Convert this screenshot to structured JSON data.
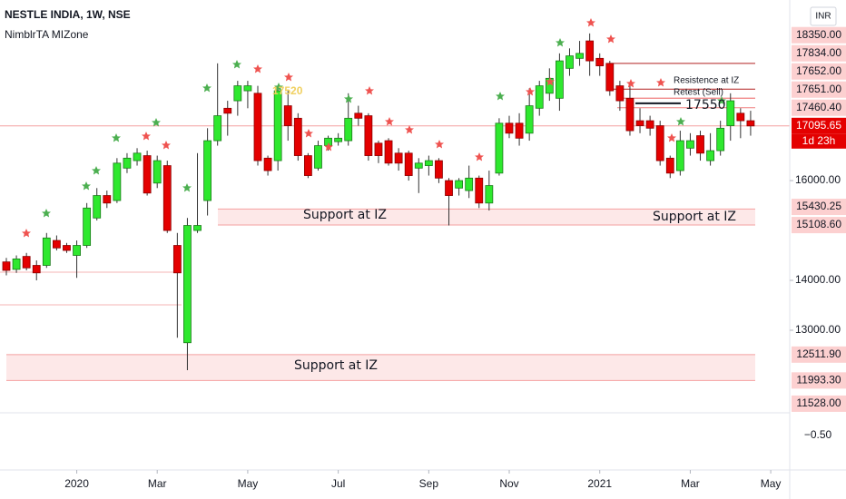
{
  "chart_data": {
    "type": "candlestick",
    "title": "NESTLE INDIA, 1W, NSE",
    "subtitle": "NimblrTA MIZone",
    "currency": "INR",
    "categories": [
      null,
      null,
      null,
      null,
      null,
      null,
      null,
      "2020",
      null,
      null,
      null,
      null,
      null,
      null,
      null,
      "Mar",
      null,
      null,
      null,
      null,
      null,
      null,
      null,
      null,
      "May",
      null,
      null,
      null,
      null,
      null,
      null,
      null,
      null,
      "Jul",
      null,
      null,
      null,
      null,
      null,
      null,
      null,
      null,
      "Sep",
      null,
      null,
      null,
      null,
      null,
      null,
      null,
      "Nov",
      null,
      null,
      null,
      null,
      null,
      null,
      null,
      null,
      "2021",
      null,
      null,
      null,
      null,
      null,
      null,
      null,
      null,
      "Mar",
      null,
      null,
      null,
      null,
      null,
      null,
      null,
      "May"
    ],
    "open": [
      14370,
      14220,
      14480,
      14300,
      14300,
      14800,
      14700,
      14500,
      14700,
      15250,
      15700,
      15600,
      16250,
      16400,
      16500,
      15950,
      16300,
      14700,
      12750,
      15000,
      15600,
      16800,
      17450,
      17600,
      17800,
      17750,
      16450,
      16400,
      17500,
      17250,
      16500,
      16250,
      16700,
      16780,
      16800,
      17350,
      17300,
      16750,
      16800,
      16550,
      16550,
      16250,
      16300,
      16400,
      16000,
      15850,
      15800,
      16050,
      15550,
      16150,
      17150,
      17150,
      16950,
      17450,
      17750,
      17650,
      18250,
      18450,
      18800,
      18450,
      18350,
      17900,
      17650,
      17200,
      17200,
      17100,
      16450,
      16200,
      16650,
      16900,
      16400,
      16600,
      17100,
      17350,
      17200,
      null,
      null
    ],
    "high": [
      14450,
      14500,
      14550,
      14400,
      14950,
      14900,
      14750,
      14800,
      15550,
      15850,
      15800,
      16450,
      16550,
      16650,
      16600,
      16500,
      16400,
      14950,
      15250,
      16550,
      17050,
      18350,
      17600,
      18000,
      18000,
      17900,
      16500,
      17900,
      17800,
      17350,
      16550,
      16800,
      16900,
      16950,
      17750,
      17500,
      17350,
      16800,
      16850,
      16650,
      16600,
      16450,
      16500,
      16450,
      16050,
      16050,
      16300,
      16100,
      16200,
      17250,
      17300,
      17350,
      17850,
      18000,
      18250,
      18550,
      18650,
      18800,
      18950,
      18550,
      18400,
      18000,
      17900,
      17450,
      17300,
      17200,
      16500,
      17000,
      16950,
      17000,
      16950,
      17200,
      17750,
      17450,
      17400,
      null,
      null
    ],
    "low": [
      14100,
      14150,
      14200,
      14000,
      14250,
      14600,
      14550,
      14050,
      14650,
      15200,
      15450,
      15550,
      16150,
      16300,
      15700,
      15850,
      14950,
      12850,
      12200,
      14950,
      15300,
      16700,
      16900,
      17300,
      17450,
      16300,
      16100,
      16200,
      16800,
      16400,
      16050,
      16200,
      16600,
      16700,
      16700,
      17100,
      16400,
      16350,
      16300,
      16200,
      16000,
      15750,
      16100,
      15950,
      15100,
      15700,
      15650,
      15450,
      15400,
      16100,
      16850,
      16700,
      16800,
      17300,
      17600,
      17400,
      18100,
      18300,
      18100,
      18100,
      17700,
      17400,
      16900,
      16950,
      16900,
      16300,
      16050,
      16100,
      16500,
      16400,
      16300,
      16500,
      16800,
      16850,
      16900,
      null,
      null
    ],
    "close": [
      14200,
      14430,
      14250,
      14150,
      14850,
      14650,
      14600,
      14700,
      15450,
      15700,
      15550,
      16350,
      16450,
      16550,
      15750,
      16400,
      15000,
      14150,
      15100,
      15100,
      16800,
      17300,
      17350,
      17900,
      17900,
      16400,
      16200,
      17800,
      17100,
      16500,
      16100,
      16700,
      16850,
      16850,
      17250,
      17250,
      16500,
      16500,
      16350,
      16350,
      16100,
      16350,
      16400,
      16050,
      15700,
      16000,
      16050,
      15550,
      15900,
      17150,
      16950,
      16850,
      17500,
      17900,
      18050,
      18400,
      18500,
      18550,
      18400,
      18300,
      17800,
      17600,
      17000,
      17100,
      17050,
      16400,
      16150,
      16800,
      16800,
      16550,
      16600,
      17050,
      17600,
      17200,
      17095.65,
      null,
      null
    ],
    "up_color": "#2ee82e",
    "down_color": "#e40000",
    "ylim": [
      11345,
      19620
    ],
    "yticks": [
      {
        "value": 16000,
        "label": "16000.00"
      },
      {
        "value": 14000,
        "label": "14000.00"
      },
      {
        "value": 13000,
        "label": "13000.00"
      }
    ],
    "levels": [
      {
        "value": 18350,
        "label": "18350.00"
      },
      {
        "value": 17834,
        "label": "17834.00"
      },
      {
        "value": 17652,
        "label": "17652.00"
      },
      {
        "value": 17651,
        "label": "17651.00"
      },
      {
        "value": 17460.4,
        "label": "17460.40"
      },
      {
        "value": 15430.25,
        "label": "15430.25"
      },
      {
        "value": 15108.6,
        "label": "15108.60"
      },
      {
        "value": 12511.9,
        "label": "12511.90"
      },
      {
        "value": 11993.3,
        "label": "11993.30"
      },
      {
        "value": 11528,
        "label": "11528.00"
      }
    ],
    "last_price": {
      "value": 17095.65,
      "label": "17095.65",
      "countdown": "1d 23h"
    },
    "price_line": {
      "value": 17550,
      "label": "17550"
    },
    "annotations": [
      "Support at IZ",
      "Support at IZ",
      "Support at IZ",
      "Resistence at IZ",
      "Retest (Sell)",
      "17520"
    ],
    "indicator_pane": {
      "yticks": [
        {
          "value": -0.5,
          "label": "−0.50"
        }
      ]
    }
  }
}
